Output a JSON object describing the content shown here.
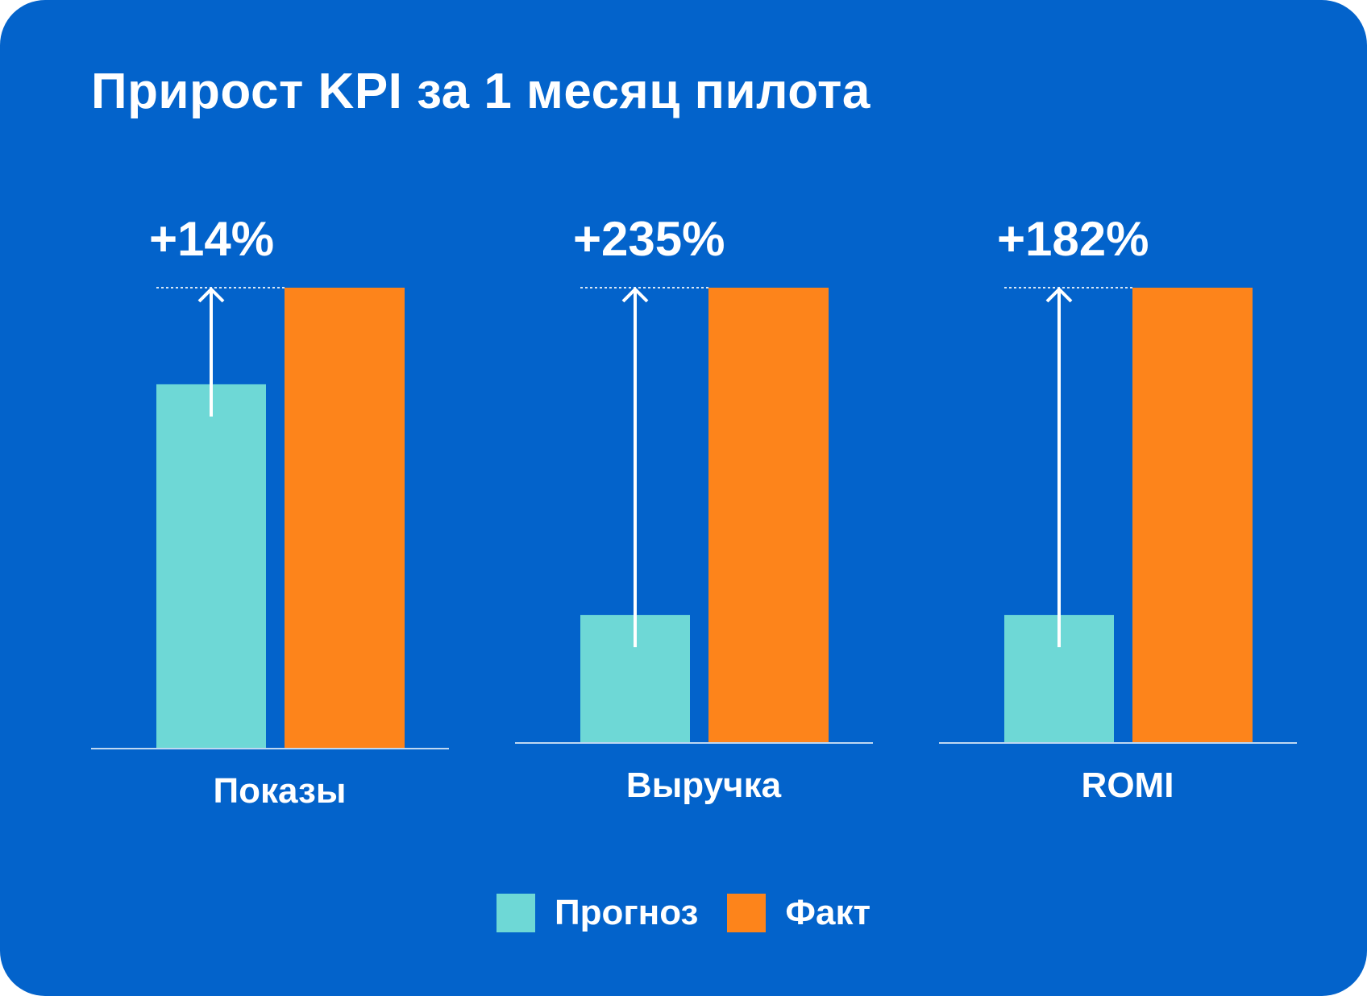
{
  "chart_data": {
    "type": "bar",
    "title": "Прирост KPI за 1 месяц пилота",
    "categories": [
      "Показы",
      "Выручка",
      "ROMI"
    ],
    "series": [
      {
        "name": "Прогноз",
        "values": [
          100,
          100,
          100
        ]
      },
      {
        "name": "Факт",
        "values": [
          114,
          335,
          282
        ]
      }
    ],
    "growth_labels": [
      "+14%",
      "+235%",
      "+182%"
    ],
    "value_note": "Факт shown at the same height in every group; Прогноз heights are relative to Факт as drawn",
    "relative_forecast_height": [
      0.79,
      0.28,
      0.28
    ],
    "legend": [
      {
        "name": "Прогноз",
        "color": "#6ed8d6"
      },
      {
        "name": "Факт",
        "color": "#fd841b"
      }
    ],
    "legend_position": "bottom-center",
    "xlabel": "",
    "ylabel": ""
  },
  "colors": {
    "background": "#0363cb",
    "forecast": "#6ed8d6",
    "actual": "#fd841b",
    "text": "#ffffff"
  }
}
